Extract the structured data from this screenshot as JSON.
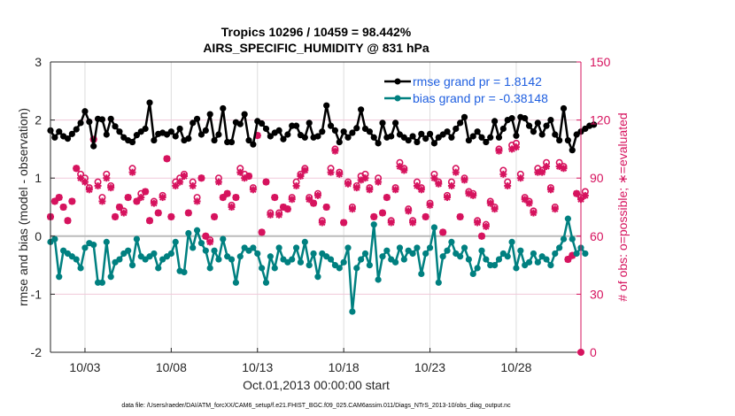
{
  "chart_data": {
    "type": "line",
    "title": "Tropics 10296 / 10459 = 98.442%",
    "subtitle": "AIRS_SPECIFIC_HUMIDITY @ 831 hPa",
    "xlabel": "Oct.01,2013 00:00:00 start",
    "ylabel": "rmse and bias (model - observation)",
    "ylabel_right": "# of obs: o=possible; ∗=evaluated",
    "footer": "data file: /Users/raeder/DAI/ATM_forcXX/CAM6_setup/f.e21.FHIST_BGC.f09_025.CAM6assim.011/Diags_NTrS_2013-10/obs_diag_output.nc",
    "x_range_days": [
      1.0,
      31.75
    ],
    "x_step_days": 0.25,
    "xticks": [
      {
        "day": 3,
        "label": "10/03"
      },
      {
        "day": 8,
        "label": "10/08"
      },
      {
        "day": 13,
        "label": "10/13"
      },
      {
        "day": 18,
        "label": "10/18"
      },
      {
        "day": 23,
        "label": "10/23"
      },
      {
        "day": 28,
        "label": "10/28"
      }
    ],
    "ylim": [
      -2,
      3
    ],
    "yticks": [
      -2,
      -1,
      0,
      1,
      2,
      3
    ],
    "ylim_right": [
      0,
      150
    ],
    "yticks_right": [
      0,
      30,
      60,
      90,
      120,
      150
    ],
    "grid": true,
    "zero_line": true,
    "legend_position": "top-right",
    "colors": {
      "rmse": "#000000",
      "bias": "#008080",
      "obs": "#d6135e",
      "legend_text": "#1f5fe0",
      "grid": "#dddddd",
      "right_grid": "#f0c8da"
    },
    "series": [
      {
        "name": "rmse grand pr = 1.8142",
        "axis": "left",
        "values": [
          1.82,
          1.7,
          1.8,
          1.72,
          1.68,
          1.76,
          1.84,
          1.95,
          2.15,
          1.97,
          1.55,
          2.02,
          2.01,
          1.75,
          2.02,
          1.89,
          1.8,
          1.7,
          1.65,
          1.62,
          1.74,
          1.8,
          1.85,
          2.3,
          1.65,
          1.76,
          1.78,
          1.75,
          1.8,
          1.72,
          1.85,
          1.65,
          1.68,
          1.95,
          2.02,
          1.75,
          1.82,
          2.1,
          1.65,
          1.75,
          2.2,
          1.62,
          1.62,
          1.96,
          1.93,
          2.1,
          1.65,
          1.58,
          1.98,
          1.94,
          1.85,
          1.72,
          1.78,
          1.82,
          1.67,
          1.75,
          1.9,
          1.9,
          1.74,
          1.7,
          1.95,
          1.7,
          1.72,
          1.8,
          2.25,
          1.9,
          1.82,
          1.62,
          1.8,
          1.7,
          1.78,
          1.86,
          2.18,
          1.85,
          1.8,
          1.7,
          1.6,
          1.95,
          1.7,
          1.72,
          1.95,
          1.75,
          1.7,
          1.65,
          1.72,
          1.62,
          1.76,
          1.68,
          1.76,
          1.6,
          1.7,
          1.75,
          1.8,
          1.7,
          1.85,
          1.95,
          2.05,
          1.65,
          1.72,
          1.8,
          1.7,
          1.62,
          1.7,
          1.98,
          1.7,
          1.85,
          2.0,
          2.03,
          1.73,
          2.05,
          2.03,
          1.9,
          1.8,
          1.95,
          1.75,
          1.9,
          2.0,
          1.75,
          1.65,
          2.2,
          1.65,
          1.48,
          1.75,
          1.8,
          1.85,
          1.9,
          1.92
        ]
      },
      {
        "name": "bias grand pr = -0.38148",
        "axis": "left",
        "values": [
          -0.1,
          -0.05,
          -0.7,
          -0.25,
          -0.3,
          -0.35,
          -0.4,
          -0.55,
          -0.2,
          -0.12,
          -0.15,
          -0.8,
          -0.8,
          -0.1,
          -0.7,
          -0.45,
          -0.4,
          -0.3,
          -0.25,
          -0.5,
          -0.05,
          -0.35,
          -0.4,
          -0.35,
          -0.3,
          -0.55,
          -0.4,
          -0.35,
          -0.3,
          -0.1,
          -0.6,
          -0.62,
          0.05,
          -0.2,
          0.1,
          -0.12,
          -0.25,
          -0.55,
          -0.25,
          -0.4,
          -0.05,
          -0.35,
          -0.4,
          -0.8,
          -0.35,
          -0.2,
          -0.25,
          -0.2,
          -0.3,
          -0.55,
          -0.8,
          -0.35,
          -0.55,
          -0.2,
          -0.4,
          -0.45,
          -0.4,
          -0.2,
          -0.45,
          -0.1,
          -0.5,
          -0.3,
          -0.7,
          -0.3,
          -0.35,
          -0.4,
          -0.5,
          -0.55,
          -0.45,
          -0.2,
          -1.3,
          -0.55,
          -0.4,
          -0.3,
          -0.5,
          0.2,
          -0.75,
          -0.35,
          -0.25,
          -0.4,
          -0.45,
          -0.2,
          -0.4,
          -0.25,
          -0.3,
          -0.2,
          -0.65,
          -0.3,
          -0.2,
          0.15,
          -0.8,
          -0.35,
          -0.25,
          -0.1,
          -0.3,
          -0.35,
          -0.2,
          -0.4,
          -0.65,
          -0.55,
          -0.25,
          -0.4,
          -0.5,
          -0.5,
          -0.4,
          -0.3,
          -0.35,
          -0.1,
          -0.55,
          -0.25,
          -0.5,
          -0.45,
          -0.3,
          -0.45,
          -0.35,
          -0.4,
          -0.5,
          -0.3,
          -0.2,
          -0.05,
          0.3,
          -0.05,
          -0.3,
          -0.2,
          -0.3
        ]
      },
      {
        "name": "# of obs possible",
        "axis": "right",
        "marker": "o",
        "values": [
          70,
          78,
          80,
          75,
          68,
          78,
          95,
          92,
          90,
          85,
          110,
          88,
          80,
          92,
          86,
          70,
          75,
          73,
          80,
          95,
          78,
          82,
          83,
          68,
          78,
          72,
          81,
          100,
          70,
          88,
          90,
          92,
          72,
          88,
          80,
          90,
          60,
          58,
          70,
          90,
          80,
          82,
          76,
          80,
          95,
          92,
          91,
          85,
          112,
          62,
          88,
          72,
          80,
          72,
          75,
          74,
          80,
          88,
          92,
          95,
          80,
          77,
          82,
          68,
          75,
          95,
          105,
          93,
          67,
          88,
          75,
          86,
          91,
          92,
          85,
          70,
          90,
          72,
          80,
          68,
          85,
          98,
          95,
          74,
          68,
          88,
          85,
          70,
          77,
          92,
          88,
          62,
          81,
          88,
          95,
          70,
          90,
          83,
          82,
          68,
          60,
          66,
          78,
          75,
          105,
          94,
          88,
          107,
          108,
          92,
          80,
          78,
          73,
          95,
          94,
          98,
          85,
          75,
          98,
          96,
          48,
          50,
          82,
          80,
          83
        ]
      },
      {
        "name": "# of obs evaluated",
        "axis": "right",
        "marker": "*",
        "values": [
          70,
          78,
          80,
          75,
          68,
          78,
          95,
          90,
          88,
          84,
          110,
          86,
          78,
          90,
          85,
          70,
          75,
          72,
          80,
          93,
          78,
          80,
          83,
          68,
          77,
          72,
          80,
          100,
          70,
          86,
          88,
          91,
          72,
          86,
          78,
          90,
          60,
          57,
          70,
          88,
          80,
          82,
          75,
          80,
          93,
          90,
          91,
          84,
          112,
          62,
          88,
          71,
          80,
          71,
          75,
          74,
          79,
          86,
          91,
          94,
          79,
          77,
          81,
          67,
          75,
          93,
          104,
          92,
          67,
          87,
          74,
          85,
          89,
          90,
          84,
          70,
          88,
          72,
          80,
          67,
          84,
          96,
          94,
          73,
          67,
          86,
          84,
          70,
          76,
          90,
          87,
          62,
          80,
          86,
          93,
          70,
          89,
          82,
          81,
          67,
          60,
          65,
          77,
          74,
          104,
          92,
          86,
          105,
          106,
          90,
          79,
          77,
          72,
          93,
          93,
          96,
          84,
          74,
          96,
          95,
          48,
          50,
          82,
          79,
          81
        ]
      }
    ]
  }
}
